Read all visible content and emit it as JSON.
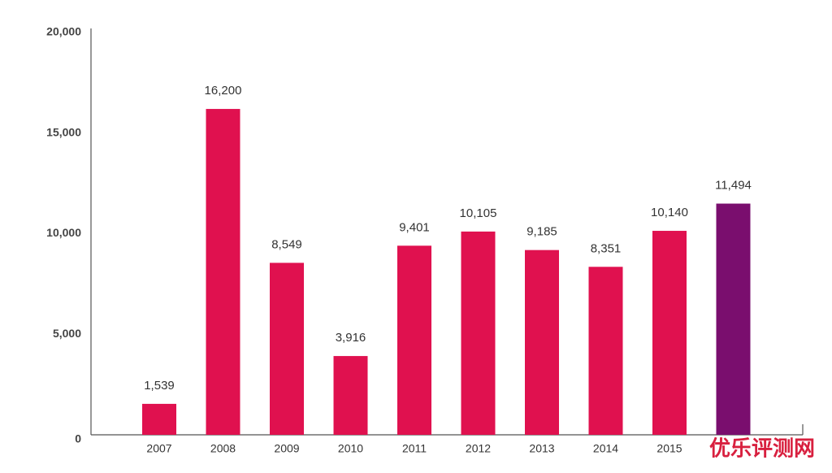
{
  "chart_data": {
    "type": "bar",
    "categories": [
      "2007",
      "2008",
      "2009",
      "2010",
      "2011",
      "2012",
      "2013",
      "2014",
      "2015",
      null
    ],
    "values": [
      1539,
      16200,
      8549,
      3916,
      9401,
      10105,
      9185,
      8351,
      10140,
      11494
    ],
    "value_labels": [
      "1,539",
      "16,200",
      "8,549",
      "3,916",
      "9,401",
      "10,105",
      "9,185",
      "8,351",
      "10,140",
      "11,494"
    ],
    "colors": [
      "#e0114f",
      "#e0114f",
      "#e0114f",
      "#e0114f",
      "#e0114f",
      "#e0114f",
      "#e0114f",
      "#e0114f",
      "#e0114f",
      "#7a0e6e"
    ],
    "ylim": [
      0,
      20000
    ],
    "yticks": [
      0,
      {
        "value": 5000,
        "label": "5,000"
      },
      {
        "value": 10000,
        "label": "10,000"
      },
      {
        "value": 15000,
        "label": "15,000"
      },
      {
        "value": 20000,
        "label": "20,000"
      }
    ],
    "grid": false,
    "watermark": "优乐评测网"
  }
}
